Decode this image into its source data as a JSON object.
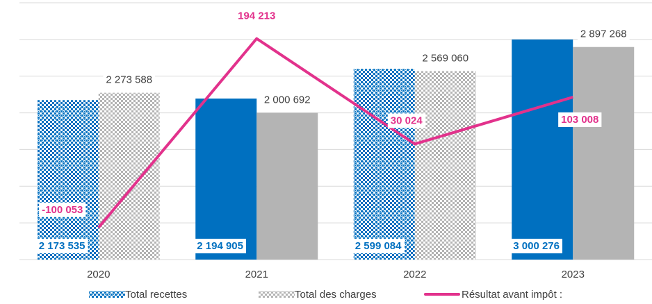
{
  "chart_data": {
    "type": "bar-line",
    "categories": [
      "2020",
      "2021",
      "2022",
      "2023"
    ],
    "series": [
      {
        "name": "Total recettes",
        "type": "bar",
        "color": "#0070c0",
        "patterned": [
          true,
          false,
          true,
          false
        ],
        "values": [
          2173535,
          2194905,
          2599084,
          3000276
        ],
        "value_labels": [
          "2 173 535",
          "2 194 905",
          "2 599 084",
          "3 000 276"
        ]
      },
      {
        "name": "Total des charges",
        "type": "bar",
        "color": "#b4b4b4",
        "patterned": [
          true,
          false,
          true,
          false
        ],
        "values": [
          2273588,
          2000692,
          2569060,
          2897268
        ],
        "value_labels": [
          "2 273 588",
          "2 000 692",
          "2 569 060",
          "2 897 268"
        ]
      },
      {
        "name": "Résultat avant impôt :",
        "type": "line",
        "axis": "y2",
        "color": "#e2328c",
        "values": [
          -100053,
          194213,
          30024,
          103008
        ],
        "value_labels": [
          "-100 053",
          "194 213",
          "30 024",
          "103 008"
        ]
      }
    ],
    "ylim": [
      0,
      3500000
    ],
    "yticks": [
      0,
      500000,
      1000000,
      1500000,
      2000000,
      2500000,
      3000000,
      3500000
    ],
    "y2lim": [
      -150000,
      250000
    ],
    "grid": true,
    "legend": "bottom"
  }
}
